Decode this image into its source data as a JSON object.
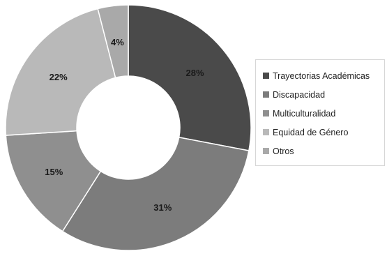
{
  "chart_data": {
    "type": "pie",
    "title": "",
    "donut": true,
    "legend_position": "right",
    "series": [
      {
        "values": [
          28,
          31,
          15,
          22,
          4
        ],
        "labels": [
          "28%",
          "31%",
          "15%",
          "22%",
          "4%"
        ]
      }
    ],
    "categories": [
      "Trayectorias Académicas",
      "Discapacidad",
      "Multiculturalidad",
      "Equidad de Género",
      "Otros"
    ],
    "colors": [
      "#4a4a4a",
      "#7c7c7c",
      "#8f8f8f",
      "#b9b9b9",
      "#a9a9a9"
    ]
  }
}
